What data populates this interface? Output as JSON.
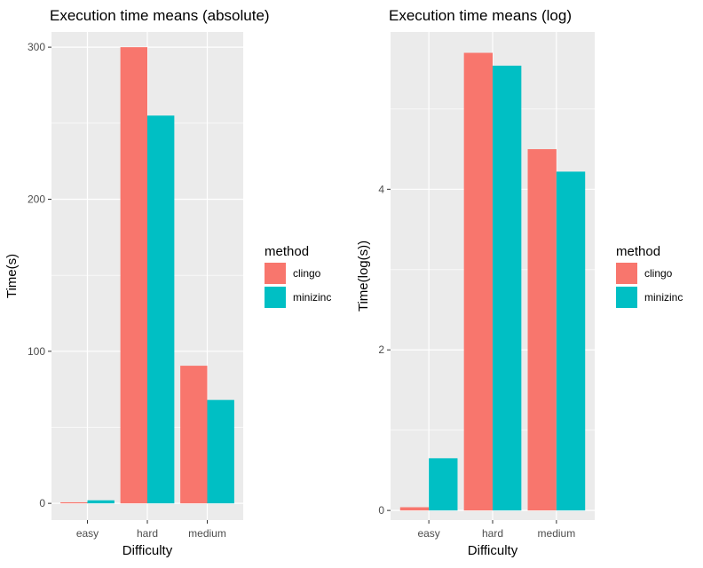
{
  "chart_data": [
    {
      "type": "bar",
      "title": "Execution time means (absolute)",
      "xlabel": "Difficulty",
      "ylabel": "Time(s)",
      "categories": [
        "easy",
        "hard",
        "medium"
      ],
      "series": [
        {
          "name": "clingo",
          "values": [
            0.7,
            300,
            90.5
          ]
        },
        {
          "name": "minizinc",
          "values": [
            2.0,
            255,
            68
          ]
        }
      ],
      "ylim": [
        -11,
        310
      ],
      "yticks": [
        0,
        100,
        200,
        300
      ],
      "ytick_labels": [
        "0",
        "100",
        "200",
        "300"
      ],
      "grid": true,
      "legend": {
        "title": "method",
        "position": "right"
      }
    },
    {
      "type": "bar",
      "title": "Execution time means (log)",
      "xlabel": "Difficulty",
      "ylabel": "Time(log(s))",
      "categories": [
        "easy",
        "hard",
        "medium"
      ],
      "series": [
        {
          "name": "clingo",
          "values": [
            0.04,
            5.7,
            4.5
          ]
        },
        {
          "name": "minizinc",
          "values": [
            0.65,
            5.54,
            4.22
          ]
        }
      ],
      "ylim": [
        -0.12,
        5.96
      ],
      "yticks": [
        0,
        2,
        4
      ],
      "ytick_labels": [
        "0",
        "2",
        "4"
      ],
      "grid": true,
      "legend": {
        "title": "method",
        "position": "right"
      }
    }
  ],
  "colors": {
    "clingo": "#F8766D",
    "minizinc": "#00BFC4",
    "panel": "#EBEBEB",
    "grid_major": "#FFFFFF"
  }
}
